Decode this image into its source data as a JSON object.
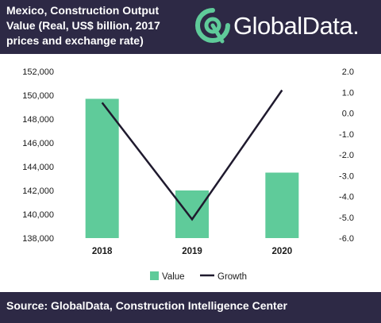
{
  "header": {
    "title": "Mexico, Construction Output Value (Real, US$ billion, 2017 prices and exchange rate)",
    "logo_text": "GlobalData."
  },
  "footer": {
    "source": "Source:  GlobalData, Construction Intelligence Center"
  },
  "colors": {
    "header_bg": "#2d2945",
    "bar": "#5fcb9a",
    "line": "#1f1a2e"
  },
  "chart_data": {
    "type": "bar",
    "categories": [
      "2018",
      "2019",
      "2020"
    ],
    "series": [
      {
        "name": "Value",
        "type": "bar",
        "axis": "left",
        "values": [
          149700,
          142000,
          143500
        ]
      },
      {
        "name": "Growth",
        "type": "line",
        "axis": "right",
        "values": [
          0.5,
          -5.1,
          1.1
        ]
      }
    ],
    "y_left": {
      "lim": [
        138000,
        152000
      ],
      "ticks": [
        "138,000",
        "140,000",
        "142,000",
        "144,000",
        "146,000",
        "148,000",
        "150,000",
        "152,000"
      ],
      "tick_values": [
        138000,
        140000,
        142000,
        144000,
        146000,
        148000,
        150000,
        152000
      ]
    },
    "y_right": {
      "lim": [
        -6,
        2
      ],
      "ticks": [
        "-6.0",
        "-5.0",
        "-4.0",
        "-3.0",
        "-2.0",
        "-1.0",
        "0.0",
        "1.0",
        "2.0"
      ],
      "tick_values": [
        -6,
        -5,
        -4,
        -3,
        -2,
        -1,
        0,
        1,
        2
      ]
    },
    "grid": false,
    "legend": {
      "position": "bottom",
      "entries": [
        "Value",
        "Growth"
      ]
    }
  }
}
